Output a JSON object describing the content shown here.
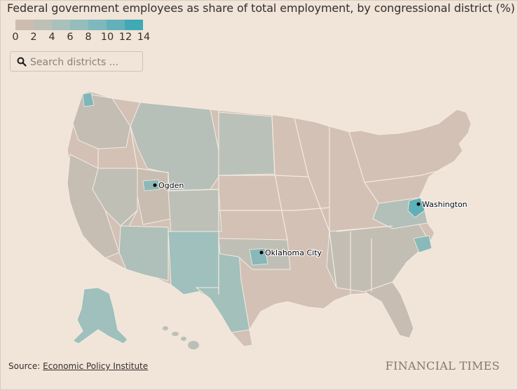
{
  "title": "Federal government employees as share of total employment, by congressional district (%)",
  "legend": {
    "ticks": [
      "0",
      "2",
      "4",
      "6",
      "8",
      "10",
      "12",
      "14"
    ],
    "colors": [
      "#cdbcb0",
      "#bcc0b7",
      "#a9c0bb",
      "#94bdbc",
      "#7db8bc",
      "#62b1b9",
      "#3fa9b6"
    ]
  },
  "search": {
    "placeholder": "Search districts ..."
  },
  "map": {
    "colors": {
      "land_low": "#d3c1b5",
      "land_mid": "#b7c0b8",
      "land_high": "#9fc0bc",
      "land_top": "#6fb5bb",
      "border": "#f4ebe2"
    },
    "cities": [
      {
        "name": "Ogden"
      },
      {
        "name": "Washington"
      },
      {
        "name": "Oklahoma City"
      }
    ]
  },
  "source": {
    "prefix": "Source: ",
    "link_text": "Economic Policy Institute"
  },
  "brand": "FINANCIAL TIMES"
}
